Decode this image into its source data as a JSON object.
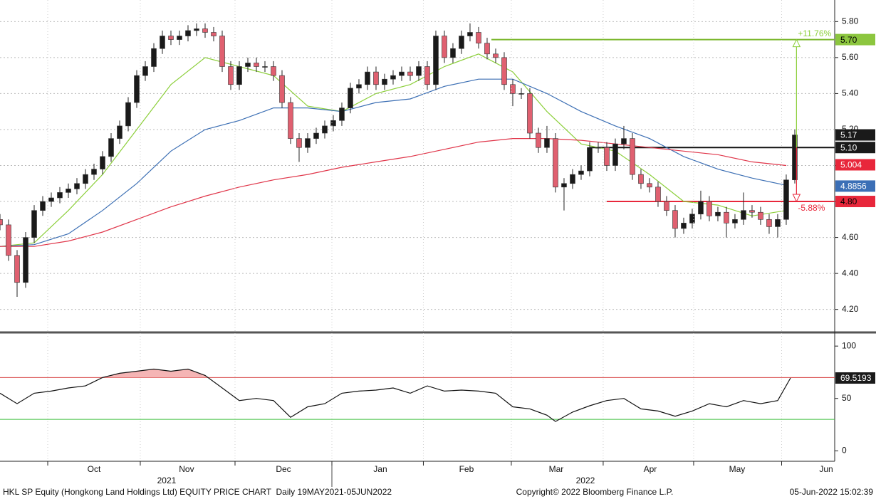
{
  "chart_data": [
    {
      "type": "candlestick",
      "xlim": [
        0,
        97.67
      ],
      "ylim": [
        4.08,
        5.92
      ],
      "yticks": [
        {
          "value": 4.2,
          "label": "4.20"
        },
        {
          "value": 4.4,
          "label": "4.40"
        },
        {
          "value": 4.6,
          "label": "4.60"
        },
        {
          "value": 4.8,
          "label": "4.80"
        },
        {
          "value": 5.0,
          "label": "5.00"
        },
        {
          "value": 5.2,
          "label": "5.20"
        },
        {
          "value": 5.4,
          "label": "5.40"
        },
        {
          "value": 5.6,
          "label": "5.60"
        },
        {
          "value": 5.8,
          "label": "5.80"
        }
      ],
      "grid": true,
      "up_color": "#1a1a1a",
      "down_color": "#e06070",
      "x": [
        0,
        1,
        2,
        3,
        4,
        5,
        6,
        7,
        8,
        9,
        10,
        11,
        12,
        13,
        14,
        15,
        16,
        17,
        18,
        19,
        20,
        21,
        22,
        23,
        24,
        25,
        26,
        27,
        28,
        29,
        30,
        31,
        32,
        33,
        34,
        35,
        36,
        37,
        38,
        39,
        40,
        41,
        42,
        43,
        44,
        45,
        46,
        47,
        48,
        49,
        50,
        51,
        52,
        53,
        54,
        55,
        56,
        57,
        58,
        59,
        60,
        61,
        62,
        63,
        64,
        65,
        66,
        67,
        68,
        69,
        70,
        71,
        72,
        73,
        74,
        75,
        76,
        77,
        78,
        79,
        80,
        81,
        82,
        83,
        84,
        85,
        86,
        87,
        88,
        89,
        90,
        91,
        92,
        93
      ],
      "open": [
        4.7,
        4.67,
        4.5,
        4.35,
        4.6,
        4.75,
        4.8,
        4.82,
        4.85,
        4.87,
        4.9,
        4.95,
        4.98,
        5.05,
        5.15,
        5.22,
        5.35,
        5.5,
        5.55,
        5.65,
        5.72,
        5.7,
        5.72,
        5.75,
        5.76,
        5.74,
        5.72,
        5.55,
        5.45,
        5.55,
        5.57,
        5.55,
        5.55,
        5.5,
        5.35,
        5.15,
        5.1,
        5.15,
        5.18,
        5.22,
        5.25,
        5.32,
        5.43,
        5.45,
        5.52,
        5.45,
        5.48,
        5.5,
        5.52,
        5.5,
        5.55,
        5.45,
        5.72,
        5.6,
        5.65,
        5.72,
        5.74,
        5.68,
        5.62,
        5.6,
        5.45,
        5.4,
        5.4,
        5.18,
        5.1,
        5.15,
        4.88,
        4.9,
        4.95,
        4.97,
        5.1,
        5.1,
        5.0,
        5.12,
        5.15,
        4.95,
        4.9,
        4.88,
        4.8,
        4.75,
        4.65,
        4.68,
        4.73,
        4.8,
        4.72,
        4.74,
        4.68,
        4.7,
        4.75,
        4.74,
        4.7,
        4.66,
        4.7,
        4.92
      ],
      "high": [
        4.73,
        4.7,
        4.53,
        4.63,
        4.78,
        4.83,
        4.85,
        4.88,
        4.9,
        4.93,
        4.98,
        5.01,
        5.08,
        5.18,
        5.25,
        5.38,
        5.53,
        5.58,
        5.68,
        5.75,
        5.75,
        5.75,
        5.78,
        5.79,
        5.79,
        5.77,
        5.75,
        5.58,
        5.58,
        5.6,
        5.6,
        5.58,
        5.58,
        5.53,
        5.38,
        5.18,
        5.18,
        5.21,
        5.25,
        5.28,
        5.35,
        5.46,
        5.48,
        5.55,
        5.55,
        5.51,
        5.53,
        5.55,
        5.55,
        5.58,
        5.58,
        5.75,
        5.75,
        5.68,
        5.75,
        5.79,
        5.77,
        5.71,
        5.65,
        5.63,
        5.48,
        5.43,
        5.43,
        5.21,
        5.22,
        5.18,
        4.93,
        4.98,
        5.0,
        5.13,
        5.13,
        5.13,
        5.15,
        5.22,
        5.18,
        4.98,
        4.93,
        4.91,
        4.83,
        4.78,
        4.71,
        4.76,
        4.86,
        4.83,
        4.77,
        4.77,
        4.73,
        4.85,
        4.78,
        4.77,
        4.73,
        4.73,
        4.95,
        5.2
      ],
      "low": [
        4.64,
        4.47,
        4.27,
        4.32,
        4.57,
        4.72,
        4.77,
        4.79,
        4.82,
        4.84,
        4.87,
        4.92,
        4.95,
        5.02,
        5.12,
        5.19,
        5.32,
        5.47,
        5.52,
        5.62,
        5.67,
        5.67,
        5.69,
        5.72,
        5.71,
        5.69,
        5.52,
        5.42,
        5.42,
        5.52,
        5.52,
        5.52,
        5.47,
        5.32,
        5.12,
        5.02,
        5.07,
        5.12,
        5.15,
        5.19,
        5.22,
        5.29,
        5.4,
        5.42,
        5.42,
        5.42,
        5.45,
        5.47,
        5.47,
        5.47,
        5.42,
        5.42,
        5.57,
        5.57,
        5.62,
        5.69,
        5.65,
        5.59,
        5.57,
        5.42,
        5.33,
        5.37,
        5.15,
        5.07,
        5.07,
        4.85,
        4.75,
        4.87,
        4.92,
        4.94,
        5.07,
        4.97,
        4.97,
        5.09,
        4.92,
        4.87,
        4.85,
        4.77,
        4.72,
        4.6,
        4.62,
        4.65,
        4.7,
        4.69,
        4.69,
        4.6,
        4.65,
        4.67,
        4.71,
        4.67,
        4.62,
        4.6,
        4.67,
        4.9
      ],
      "close": [
        4.67,
        4.5,
        4.35,
        4.6,
        4.75,
        4.8,
        4.82,
        4.85,
        4.87,
        4.9,
        4.95,
        4.98,
        5.05,
        5.15,
        5.22,
        5.35,
        5.5,
        5.55,
        5.65,
        5.72,
        5.7,
        5.72,
        5.75,
        5.76,
        5.74,
        5.72,
        5.55,
        5.45,
        5.55,
        5.57,
        5.55,
        5.55,
        5.5,
        5.35,
        5.15,
        5.1,
        5.15,
        5.18,
        5.22,
        5.25,
        5.32,
        5.43,
        5.45,
        5.52,
        5.45,
        5.48,
        5.5,
        5.52,
        5.5,
        5.55,
        5.45,
        5.72,
        5.6,
        5.65,
        5.72,
        5.74,
        5.68,
        5.62,
        5.6,
        5.45,
        5.4,
        5.4,
        5.18,
        5.1,
        5.15,
        4.88,
        4.9,
        4.95,
        4.97,
        5.1,
        5.1,
        5.0,
        5.12,
        5.15,
        4.95,
        4.9,
        4.88,
        4.8,
        4.75,
        4.65,
        4.68,
        4.73,
        4.8,
        4.72,
        4.74,
        4.68,
        4.7,
        4.75,
        4.74,
        4.7,
        4.66,
        4.7,
        4.92,
        5.17
      ],
      "series": [
        {
          "color": "#8ccf3a",
          "x": [
            0,
            4,
            8,
            12,
            16,
            20,
            24,
            28,
            32,
            36,
            40,
            44,
            48,
            52,
            56,
            60,
            64,
            68,
            72,
            76,
            80,
            84,
            88,
            92
          ],
          "values": [
            4.55,
            4.57,
            4.75,
            4.95,
            5.2,
            5.45,
            5.6,
            5.55,
            5.5,
            5.33,
            5.3,
            5.4,
            5.45,
            5.55,
            5.62,
            5.52,
            5.3,
            5.12,
            5.08,
            4.95,
            4.8,
            4.78,
            4.72,
            4.75
          ]
        },
        {
          "color": "#3c6fb4",
          "x": [
            0,
            4,
            8,
            12,
            16,
            20,
            24,
            28,
            32,
            36,
            40,
            44,
            48,
            52,
            56,
            60,
            64,
            68,
            72,
            76,
            80,
            84,
            88,
            92
          ],
          "values": [
            4.55,
            4.56,
            4.62,
            4.75,
            4.9,
            5.08,
            5.2,
            5.25,
            5.32,
            5.32,
            5.3,
            5.35,
            5.37,
            5.44,
            5.48,
            5.48,
            5.4,
            5.3,
            5.22,
            5.15,
            5.05,
            4.98,
            4.93,
            4.89
          ]
        },
        {
          "color": "#e0364a",
          "x": [
            0,
            4,
            8,
            12,
            16,
            20,
            24,
            28,
            32,
            36,
            40,
            44,
            48,
            52,
            56,
            60,
            64,
            68,
            72,
            76,
            80,
            84,
            88,
            92
          ],
          "values": [
            4.55,
            4.55,
            4.58,
            4.63,
            4.7,
            4.77,
            4.83,
            4.88,
            4.92,
            4.95,
            4.99,
            5.02,
            5.05,
            5.09,
            5.13,
            5.15,
            5.15,
            5.14,
            5.12,
            5.1,
            5.08,
            5.06,
            5.02,
            5.0
          ]
        }
      ],
      "levels": [
        {
          "value": 5.7,
          "x_start": 57.5,
          "color": "#7cb82f"
        },
        {
          "value": 5.1,
          "x_start": 69,
          "color": "#111111"
        },
        {
          "value": 4.8,
          "x_start": 71,
          "color": "#e8273b"
        }
      ],
      "arrows": [
        {
          "x": 93.2,
          "from": 5.1,
          "to": 5.7,
          "label": "+11.76%",
          "color": "#8ccf3a"
        },
        {
          "x": 93.2,
          "from": 5.1,
          "to": 4.8,
          "label": "-5.88%",
          "color": "#e8273b"
        }
      ],
      "tags": [
        {
          "value": 5.7,
          "label": "5.70",
          "color": "#8cc63f",
          "text_color": "#000000"
        },
        {
          "value": 5.17,
          "label": "5.17",
          "color": "#1a1a1a",
          "text_color": "#ffffff"
        },
        {
          "value": 5.1,
          "label": "5.10",
          "color": "#1a1a1a",
          "text_color": "#ffffff"
        },
        {
          "value": 5.004,
          "color": "#e8273b",
          "text_color": "#ffffff"
        },
        {
          "value": 4.8856,
          "color": "#3b6fb6",
          "text_color": "#ffffff"
        },
        {
          "value": 4.8,
          "label": "4.80",
          "color": "#e8273b",
          "text_color": "#000000"
        }
      ]
    },
    {
      "type": "line",
      "xlim": [
        0,
        97.67
      ],
      "ylim": [
        -10,
        111
      ],
      "yticks": [
        0,
        50,
        100
      ],
      "xticks": [
        {
          "value": 11,
          "label": "Oct"
        },
        {
          "value": 21.83,
          "label": "Nov"
        },
        {
          "value": 33.17,
          "label": "Dec"
        },
        {
          "value": 44.5,
          "label": "Jan"
        },
        {
          "value": 54.58,
          "label": "Feb"
        },
        {
          "value": 65.08,
          "label": "Mar"
        },
        {
          "value": 76.08,
          "label": "Apr"
        },
        {
          "value": 86.25,
          "label": "May"
        },
        {
          "value": 96.67,
          "label": "Jun"
        }
      ],
      "year_labels": [
        {
          "value": 19.5,
          "label": "2021"
        },
        {
          "value": 68.5,
          "label": "2022"
        }
      ],
      "series": [
        {
          "color": "#111111",
          "x": [
            0,
            2,
            4,
            6,
            8,
            10,
            12,
            14,
            16,
            18,
            20,
            22,
            24,
            26,
            28,
            30,
            32,
            34,
            36,
            38,
            40,
            42,
            44,
            46,
            48,
            50,
            52,
            54,
            56,
            58,
            60,
            62,
            64,
            65,
            67,
            69,
            71,
            73,
            75,
            77,
            79,
            81,
            83,
            85,
            87,
            89,
            91,
            92.5
          ],
          "values": [
            55,
            45,
            55,
            57,
            60,
            62,
            70,
            74,
            76,
            78,
            76,
            78,
            72,
            60,
            48,
            50,
            48,
            32,
            42,
            45,
            55,
            57,
            58,
            60,
            55,
            62,
            57,
            58,
            57,
            55,
            42,
            40,
            34,
            28,
            37,
            43,
            48,
            50,
            40,
            38,
            33,
            38,
            45,
            42,
            48,
            45,
            48,
            69.5193
          ]
        }
      ],
      "levels": [
        {
          "value": 70,
          "color": "#d43a3a"
        },
        {
          "value": 30,
          "color": "#3fbf3f"
        }
      ],
      "overbought_fill": "#f5b5b5",
      "tags": [
        {
          "value": 69.5193,
          "color": "#1a1a1a",
          "text_color": "#ffffff"
        }
      ]
    }
  ],
  "footer": {
    "left": "HKL SP Equity (Hongkong Land Holdings Ltd) EQUITY PRICE CHART  Daily 19MAY2021-05JUN2022",
    "center": "Copyright© 2022 Bloomberg Finance L.P.",
    "right": "05-Jun-2022 15:02:39"
  }
}
